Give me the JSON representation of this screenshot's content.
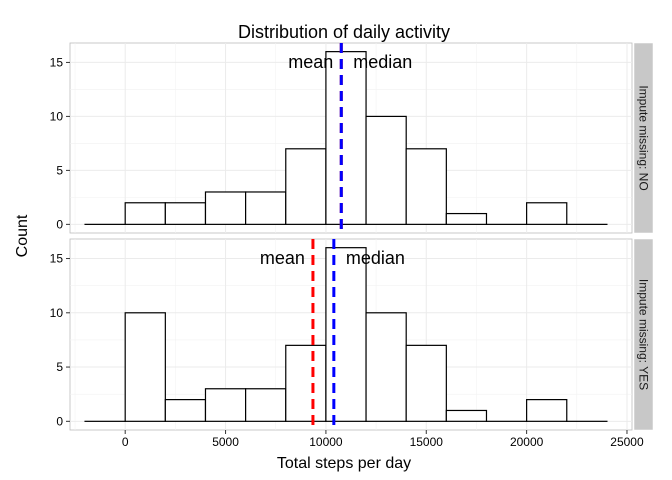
{
  "chart_data": {
    "type": "bar",
    "title": "Distribution of daily activity",
    "xlabel": "Total steps per day",
    "ylabel": "Count",
    "xlim": [
      -2750,
      25250
    ],
    "ylim": [
      -0.8,
      16.8
    ],
    "x_ticks": [
      0,
      5000,
      10000,
      15000,
      20000,
      25000
    ],
    "x_tick_labels": [
      "0",
      "5000",
      "10000",
      "15000",
      "20000",
      "25000"
    ],
    "y_ticks": [
      0,
      5,
      10,
      15
    ],
    "y_tick_labels": [
      "0",
      "5",
      "10",
      "15"
    ],
    "bin_width": 2000,
    "bin_starts": [
      -2000,
      0,
      2000,
      4000,
      6000,
      8000,
      10000,
      12000,
      14000,
      16000,
      18000,
      20000,
      22000
    ],
    "grid": true,
    "colors": {
      "panel_bg": "#ffffff",
      "grid": "#ebebeb",
      "strip_bg": "#c8c8c8",
      "bar_fill": "#ffffff",
      "bar_outline": "#000000",
      "mean_line": "#ff0000",
      "median_line": "#0000ff"
    },
    "panels": [
      {
        "strip_label": "Impute missing: NO",
        "counts": [
          0,
          2,
          2,
          3,
          3,
          7,
          16,
          10,
          7,
          1,
          0,
          2,
          0
        ],
        "mean": 10766,
        "median": 10765,
        "mean_label": "mean",
        "median_label": "median"
      },
      {
        "strip_label": "Impute missing: YES",
        "counts": [
          0,
          10,
          2,
          3,
          3,
          7,
          16,
          10,
          7,
          1,
          0,
          2,
          0
        ],
        "mean": 9354,
        "median": 10395,
        "mean_label": "mean",
        "median_label": "median"
      }
    ]
  }
}
